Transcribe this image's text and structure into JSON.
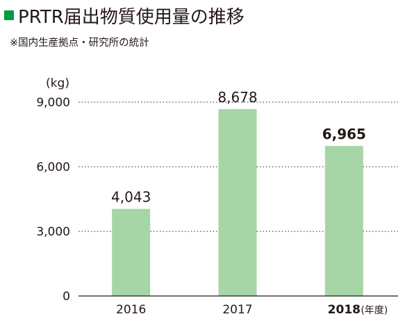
{
  "title": {
    "marker_color": "#009a44",
    "text": "PRTR届出物質使用量の推移"
  },
  "subtitle": "※国内生産拠点・研究所の統計",
  "chart_data": {
    "type": "bar",
    "categories": [
      "2016",
      "2017",
      "2018"
    ],
    "values": [
      4043,
      8678,
      6965
    ],
    "value_labels": [
      "4,043",
      "8,678",
      "6,965"
    ],
    "highlight_index": 2,
    "bar_color": "#a7d6a6",
    "ylabel": "(kg)",
    "xlabel_suffix": "(年度)",
    "ylim": [
      0,
      9000
    ],
    "yticks": [
      0,
      3000,
      6000,
      9000
    ],
    "ytick_labels": [
      "0",
      "3,000",
      "6,000",
      "9,000"
    ],
    "grid": "horizontal-dotted",
    "legend": "none"
  }
}
